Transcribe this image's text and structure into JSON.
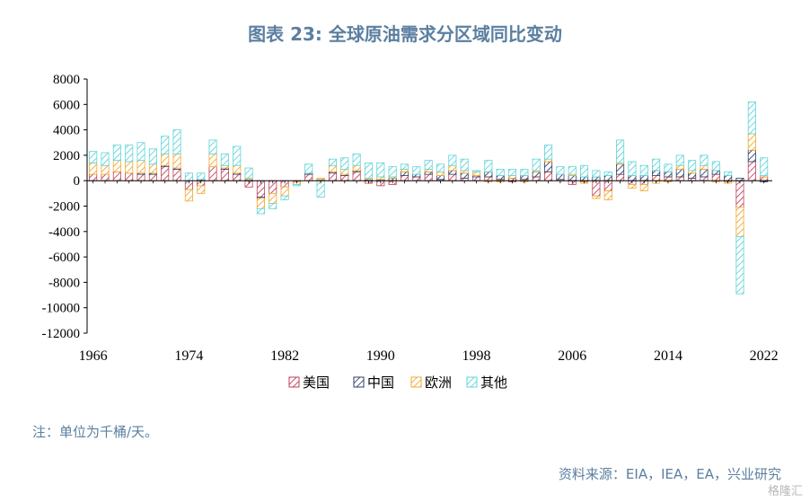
{
  "title": "图表 23: 全球原油需求分区域同比变动",
  "note": "注：单位为千桶/天。",
  "source": "资料来源：EIA，IEA，EA，兴业研究",
  "watermark": "格隆汇",
  "colors": {
    "us": "#c0405a",
    "china": "#2f3f66",
    "europe": "#f0a830",
    "other": "#5fd4d8"
  },
  "chart_data": {
    "type": "bar",
    "stacked": true,
    "x": [
      1966,
      1967,
      1968,
      1969,
      1970,
      1971,
      1972,
      1973,
      1974,
      1975,
      1976,
      1977,
      1978,
      1979,
      1980,
      1981,
      1982,
      1983,
      1984,
      1985,
      1986,
      1987,
      1988,
      1989,
      1990,
      1991,
      1992,
      1993,
      1994,
      1995,
      1996,
      1997,
      1998,
      1999,
      2000,
      2001,
      2002,
      2003,
      2004,
      2005,
      2006,
      2007,
      2008,
      2009,
      2010,
      2011,
      2012,
      2013,
      2014,
      2015,
      2016,
      2017,
      2018,
      2019,
      2020,
      2021,
      2022
    ],
    "x_tick_labels": [
      "1966",
      "1974",
      "1982",
      "1990",
      "1998",
      "2006",
      "2014",
      "2022"
    ],
    "ylim": [
      -12000,
      8000
    ],
    "y_ticks": [
      8000,
      6000,
      4000,
      2000,
      0,
      -2000,
      -4000,
      -6000,
      -8000,
      -10000,
      -12000
    ],
    "legend_position": "bottom",
    "series": [
      {
        "name": "美国",
        "key": "us",
        "values": [
          500,
          500,
          700,
          600,
          500,
          500,
          1100,
          900,
          -700,
          -400,
          1100,
          900,
          500,
          -500,
          -1300,
          -1000,
          -500,
          -100,
          500,
          0,
          600,
          400,
          700,
          -200,
          -400,
          -300,
          400,
          300,
          500,
          100,
          500,
          200,
          300,
          300,
          100,
          -100,
          100,
          300,
          700,
          100,
          -300,
          -100,
          -1200,
          -800,
          500,
          -300,
          -300,
          400,
          300,
          300,
          200,
          300,
          500,
          -100,
          -2100,
          1500,
          300
        ]
      },
      {
        "name": "中国",
        "key": "china",
        "values": [
          0,
          0,
          0,
          0,
          100,
          100,
          100,
          100,
          0,
          100,
          0,
          100,
          100,
          100,
          -100,
          0,
          0,
          0,
          100,
          100,
          100,
          100,
          100,
          100,
          100,
          200,
          300,
          200,
          200,
          300,
          300,
          400,
          100,
          400,
          300,
          200,
          300,
          400,
          800,
          400,
          400,
          300,
          300,
          400,
          800,
          400,
          400,
          400,
          400,
          600,
          400,
          600,
          300,
          400,
          200,
          900,
          -100
        ]
      },
      {
        "name": "欧洲",
        "key": "europe",
        "values": [
          900,
          700,
          900,
          900,
          1000,
          700,
          900,
          1100,
          -900,
          -600,
          1000,
          200,
          600,
          100,
          -800,
          -800,
          -700,
          -200,
          0,
          100,
          500,
          400,
          400,
          100,
          200,
          100,
          200,
          0,
          200,
          300,
          400,
          200,
          300,
          -100,
          -100,
          200,
          -100,
          100,
          200,
          0,
          100,
          -100,
          -200,
          -700,
          100,
          -300,
          -500,
          -200,
          -100,
          300,
          200,
          300,
          -100,
          -100,
          -2300,
          1300,
          100
        ]
      },
      {
        "name": "其他",
        "key": "other",
        "values": [
          900,
          1000,
          1200,
          1300,
          1400,
          1200,
          1400,
          1900,
          600,
          500,
          1100,
          900,
          1500,
          800,
          -400,
          -400,
          -300,
          -100,
          700,
          -1300,
          500,
          900,
          900,
          1200,
          1100,
          800,
          400,
          600,
          700,
          600,
          800,
          900,
          100,
          900,
          500,
          500,
          500,
          900,
          1100,
          600,
          600,
          900,
          500,
          300,
          1800,
          1100,
          800,
          900,
          600,
          800,
          800,
          800,
          700,
          300,
          -4500,
          2500,
          1400
        ]
      }
    ]
  }
}
